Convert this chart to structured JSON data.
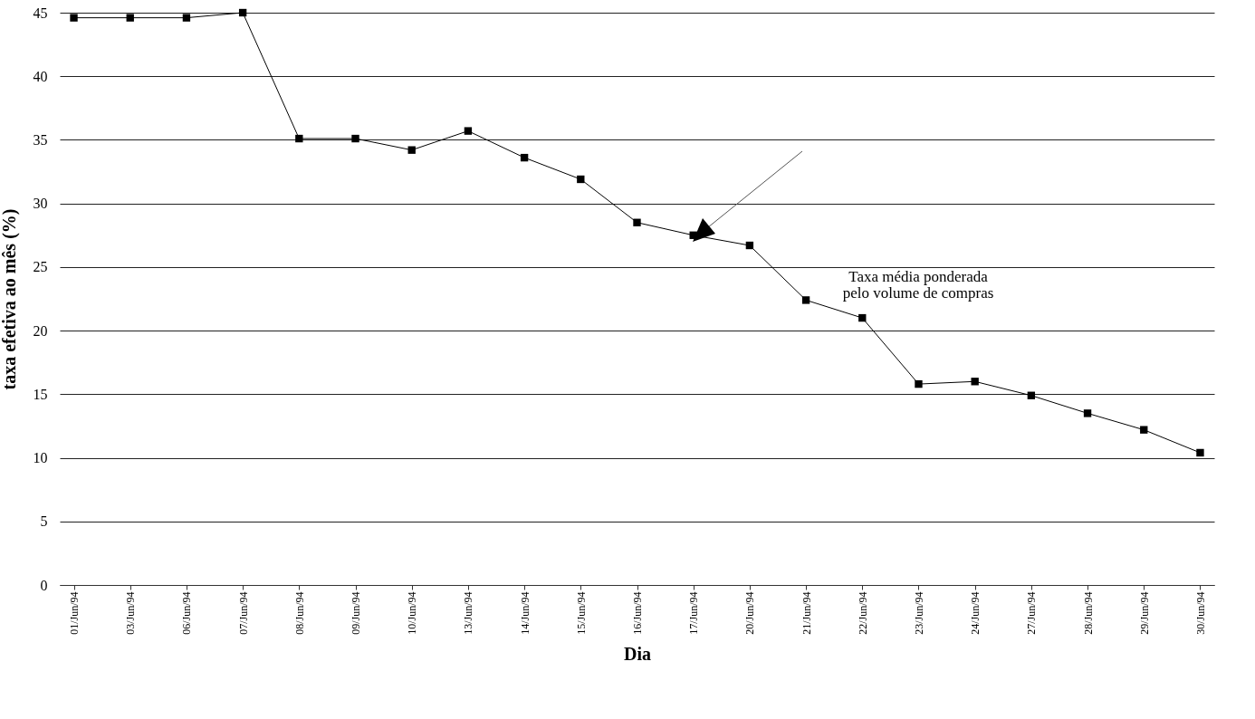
{
  "chart_data": {
    "type": "line",
    "xlabel": "Dia",
    "ylabel": "taxa efetiva ao mês (%)",
    "categories": [
      "01/Jun/94",
      "03/Jun/94",
      "06/Jun/94",
      "07/Jun/94",
      "08/Jun/94",
      "09/Jun/94",
      "10/Jun/94",
      "13/Jun/94",
      "14/Jun/94",
      "15/Jun/94",
      "16/Jun/94",
      "17/Jun/94",
      "20/Jun/94",
      "21/Jun/94",
      "22/Jun/94",
      "23/Jun/94",
      "24/Jun/94",
      "27/Jun/94",
      "28/Jun/94",
      "29/Jun/94",
      "30/Jun/94"
    ],
    "series": [
      {
        "color": "#000000",
        "values": [
          44.6,
          44.6,
          44.6,
          45,
          35.1,
          35.1,
          34.2,
          35.7,
          33.6,
          31.9,
          28.5,
          27.5,
          26.7,
          22.4,
          21,
          15.8,
          16,
          14.9,
          13.5,
          12.2,
          10.4
        ]
      }
    ],
    "ylim": [
      0,
      45
    ],
    "yticks": [
      0,
      5,
      10,
      15,
      20,
      25,
      30,
      35,
      40,
      45
    ],
    "grid": "y",
    "marker": "square",
    "line_style": "solid",
    "legend": false,
    "annotations": [
      "Taxa média ponderada\npelo volume de compras"
    ]
  }
}
